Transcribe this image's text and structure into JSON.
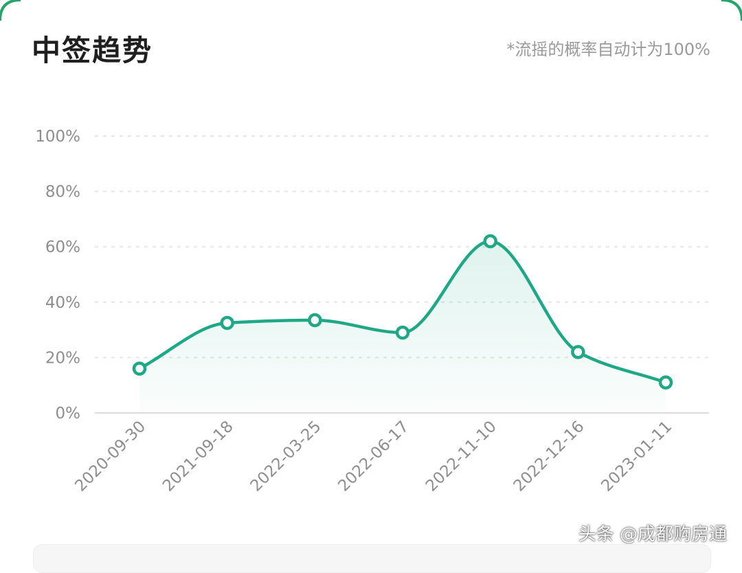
{
  "header": {
    "title": "中签趋势",
    "note": "*流摇的概率自动计为100%"
  },
  "watermark": "头条 @成都购房通",
  "colors": {
    "line": "#1ea885",
    "frame": "#26a46b",
    "grid": "#e6e6e6",
    "axis": "#dcdcdc"
  },
  "chart_data": {
    "type": "line",
    "categories": [
      "2020-09-30",
      "2021-09-18",
      "2022-03-25",
      "2022-06-17",
      "2022-11-10",
      "2022-12-16",
      "2023-01-11"
    ],
    "series": [
      {
        "values": [
          16,
          32.5,
          33.5,
          29,
          62,
          22,
          11
        ]
      }
    ],
    "yticks": [
      "0%",
      "20%",
      "40%",
      "60%",
      "80%",
      "100%"
    ],
    "ylim": [
      0,
      100
    ],
    "grid": true,
    "smooth": true,
    "area_fill": true
  }
}
